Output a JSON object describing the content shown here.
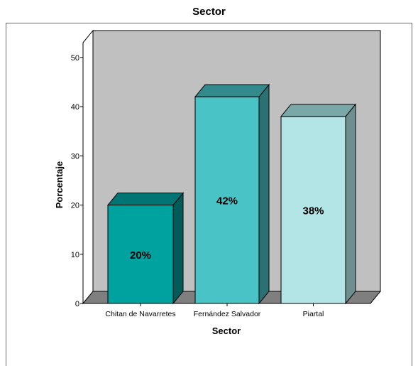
{
  "chart_data": {
    "type": "bar",
    "title": "Sector",
    "xlabel": "Sector",
    "ylabel": "Porcentaje",
    "categories": [
      "Chitan de Navarretes",
      "Fernández Salvador",
      "Piartal"
    ],
    "values": [
      20,
      42,
      38
    ],
    "data_labels": [
      "20%",
      "42%",
      "38%"
    ],
    "yticks": [
      "0",
      "10",
      "20",
      "30",
      "40",
      "50"
    ],
    "ylim": [
      0,
      53
    ],
    "grid": false,
    "style": "3d-bar",
    "colors": {
      "plot_back_wall": "#c0c0c0",
      "plot_floor": "#7f7f7f",
      "bars": [
        {
          "front": "#00a29f",
          "top": "#007573",
          "side": "#005b59"
        },
        {
          "front": "#49c3c6",
          "top": "#338a8c",
          "side": "#2b7072"
        },
        {
          "front": "#b3e4e6",
          "top": "#7aa7a8",
          "side": "#6f8e8f"
        }
      ]
    }
  }
}
